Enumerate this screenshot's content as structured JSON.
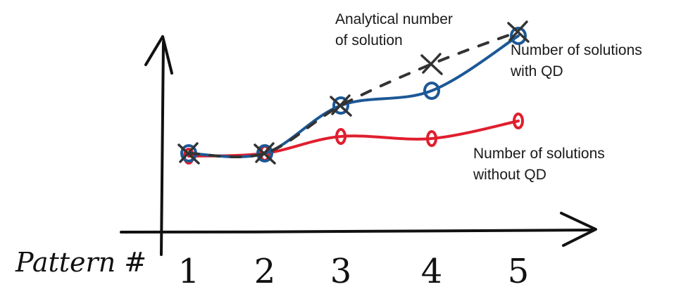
{
  "chart_data": {
    "type": "line",
    "title": "",
    "xlabel": "Pattern #",
    "ylabel": "",
    "categories": [
      "1",
      "2",
      "3",
      "4",
      "5"
    ],
    "ylim": [
      0,
      10
    ],
    "grid": false,
    "legend": "inline-labels",
    "series": [
      {
        "name": "Analytical number of solution",
        "style": "dashed",
        "marker": "x",
        "color": "#333333",
        "values": [
          3.6,
          3.6,
          5.8,
          7.7,
          9.2
        ]
      },
      {
        "name": "Number of solutions with QD",
        "style": "solid",
        "marker": "o",
        "color": "#1c5896",
        "values": [
          3.6,
          3.6,
          5.8,
          6.5,
          9.0
        ]
      },
      {
        "name": "Number of solutions without QD",
        "style": "solid",
        "marker": "o",
        "color": "#e01e2e",
        "values": [
          3.5,
          3.6,
          4.4,
          4.3,
          5.1
        ]
      }
    ]
  }
}
